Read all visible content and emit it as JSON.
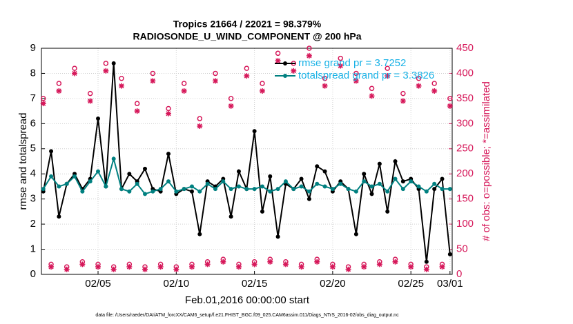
{
  "chart_data": {
    "type": "line",
    "title": "Tropics 21664 / 22021 = 98.379%",
    "subtitle": "RADIOSONDE_U_WIND_COMPONENT @ 200 hPa",
    "x_label": "Feb.01,2016 00:00:00 start",
    "y_label": "rmse and totalspread",
    "y2_label": "# of obs: o=possible; *=assimilated",
    "footnote": "data file: /Users/raeder/DAI/ATM_forcXX/CAM6_setup/f.e21.FHIST_BGC.f09_025.CAM6assim.011/Diags_NTrS_2016-02/obs_diag_output.nc",
    "x": [
      0.5,
      1,
      1.5,
      2,
      2.5,
      3,
      3.5,
      4,
      4.5,
      5,
      5.5,
      6,
      6.5,
      7,
      7.5,
      8,
      8.5,
      9,
      9.5,
      10,
      10.5,
      11,
      11.5,
      12,
      12.5,
      13,
      13.5,
      14,
      14.5,
      15,
      15.5,
      16,
      16.5,
      17,
      17.5,
      18,
      18.5,
      19,
      19.5,
      20,
      20.5,
      21,
      21.5,
      22,
      22.5,
      23,
      23.5,
      24,
      24.5,
      25,
      25.5,
      26,
      26.5
    ],
    "xlim": [
      0.38,
      26.64
    ],
    "xticks": [
      {
        "value": 4,
        "label": "02/05"
      },
      {
        "value": 9,
        "label": "02/10"
      },
      {
        "value": 14,
        "label": "02/15"
      },
      {
        "value": 19,
        "label": "02/20"
      },
      {
        "value": 24,
        "label": "02/25"
      },
      {
        "value": 26.5,
        "label": "03/01"
      }
    ],
    "ylim": [
      0,
      9
    ],
    "yticks": [
      0,
      1,
      2,
      3,
      4,
      5,
      6,
      7,
      8,
      9
    ],
    "y2lim": [
      0,
      450
    ],
    "y2ticks": [
      0,
      50,
      100,
      150,
      200,
      250,
      300,
      350,
      400,
      450
    ],
    "grid": true,
    "legend": "upper right",
    "legend_text_color": "#19b2e6",
    "y2_color": "#d6185a",
    "series": [
      {
        "name": "rmse grand pr = 3.7252",
        "color": "#000000",
        "marker": "dot",
        "values": [
          3.3,
          4.9,
          2.3,
          3.6,
          4.0,
          3.4,
          3.8,
          6.2,
          3.5,
          8.4,
          3.4,
          4.0,
          3.7,
          4.2,
          3.4,
          3.3,
          4.8,
          3.2,
          3.4,
          3.3,
          1.6,
          3.7,
          3.5,
          3.8,
          2.3,
          4.1,
          3.4,
          5.7,
          2.5,
          3.9,
          1.5,
          3.6,
          3.4,
          3.8,
          3.0,
          4.3,
          4.1,
          3.3,
          3.7,
          3.4,
          1.6,
          4.0,
          3.2,
          4.4,
          2.5,
          4.5,
          3.7,
          3.8,
          3.4,
          0.5,
          3.4,
          3.8,
          0.8
        ]
      },
      {
        "name": "totalspread grand pr = 3.3826",
        "color": "#008080",
        "marker": "dot",
        "values": [
          3.4,
          3.9,
          3.5,
          3.6,
          3.9,
          3.3,
          3.7,
          4.1,
          3.5,
          4.6,
          3.4,
          3.3,
          3.6,
          3.2,
          3.3,
          3.4,
          3.7,
          3.3,
          3.4,
          3.5,
          3.3,
          3.6,
          3.4,
          3.7,
          3.4,
          3.5,
          3.4,
          3.4,
          3.5,
          3.3,
          3.4,
          3.7,
          3.4,
          3.5,
          3.3,
          3.6,
          3.5,
          3.4,
          3.6,
          3.4,
          3.3,
          3.7,
          3.5,
          3.6,
          3.3,
          3.8,
          3.4,
          3.7,
          3.5,
          3.3,
          3.6,
          3.4,
          3.4
        ]
      },
      {
        "color": "#d6185a",
        "marker": "circle",
        "axis": "y2",
        "values": [
          350,
          20,
          380,
          15,
          410,
          25,
          360,
          20,
          420,
          15,
          390,
          20,
          340,
          15,
          400,
          20,
          330,
          15,
          380,
          20,
          310,
          25,
          400,
          30,
          350,
          20,
          410,
          25,
          380,
          30,
          440,
          25,
          420,
          20,
          450,
          30,
          390,
          20,
          430,
          15,
          400,
          20,
          370,
          25,
          410,
          30,
          360,
          20,
          390,
          15,
          380,
          20,
          350
        ]
      },
      {
        "color": "#d6185a",
        "marker": "asterisk",
        "axis": "y2",
        "values": [
          340,
          15,
          365,
          10,
          400,
          20,
          345,
          15,
          405,
          10,
          375,
          15,
          325,
          10,
          385,
          15,
          320,
          10,
          365,
          15,
          295,
          20,
          385,
          25,
          335,
          15,
          395,
          20,
          365,
          25,
          425,
          20,
          405,
          15,
          435,
          25,
          375,
          15,
          415,
          10,
          385,
          15,
          355,
          20,
          395,
          25,
          345,
          15,
          375,
          10,
          365,
          15,
          335
        ]
      }
    ]
  }
}
